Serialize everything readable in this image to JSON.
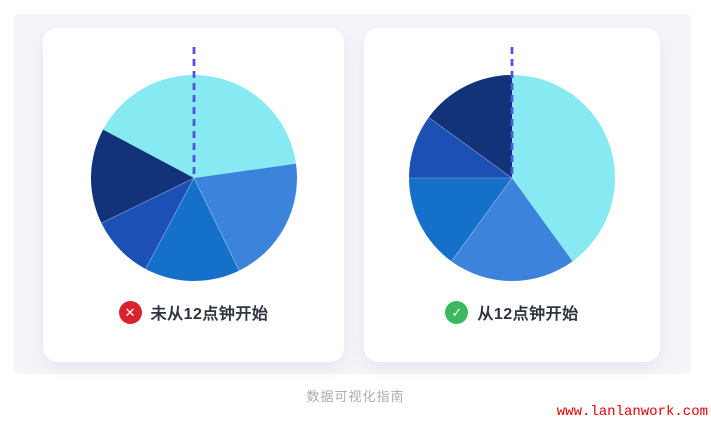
{
  "page": {
    "background": "#ffffff",
    "panel_color": "#F3F5F9",
    "caption": "数据可视化指南",
    "watermark": "www.lanlanwork.com"
  },
  "colors": {
    "guide_line": "#5552E2",
    "card_background": "#ffffff",
    "label_text": "#2F3540",
    "caption_text": "#A8ACB4",
    "watermark_text": "#ED0000",
    "slice_separator": "rgba(255,255,255,0.35)"
  },
  "cards": [
    {
      "label": "未从12点钟开始",
      "badge_glyph": "✕",
      "badge_color": "#D8222E"
    },
    {
      "label": "从12点钟开始",
      "badge_glyph": "✓",
      "badge_color": "#3BBA5D"
    }
  ],
  "chart_data": [
    {
      "type": "pie",
      "title": "未从12点钟开始",
      "start_angle_deg": 298,
      "unit": "percent",
      "slices": [
        {
          "value": 40,
          "color": "#87E9F2"
        },
        {
          "value": 20,
          "color": "#3C84DB"
        },
        {
          "value": 15,
          "color": "#1570CA"
        },
        {
          "value": 10,
          "color": "#1C50B4"
        },
        {
          "value": 15,
          "color": "#123379"
        }
      ],
      "guide_line": {
        "angle_deg": 0,
        "style": "dashed",
        "color": "#5552E2"
      }
    },
    {
      "type": "pie",
      "title": "从12点钟开始",
      "start_angle_deg": 0,
      "unit": "percent",
      "slices": [
        {
          "value": 40,
          "color": "#87E9F2"
        },
        {
          "value": 20,
          "color": "#3C84DB"
        },
        {
          "value": 15,
          "color": "#1570CA"
        },
        {
          "value": 10,
          "color": "#1C50B4"
        },
        {
          "value": 15,
          "color": "#123379"
        }
      ],
      "guide_line": {
        "angle_deg": 0,
        "style": "dashed",
        "color": "#5552E2"
      }
    }
  ]
}
